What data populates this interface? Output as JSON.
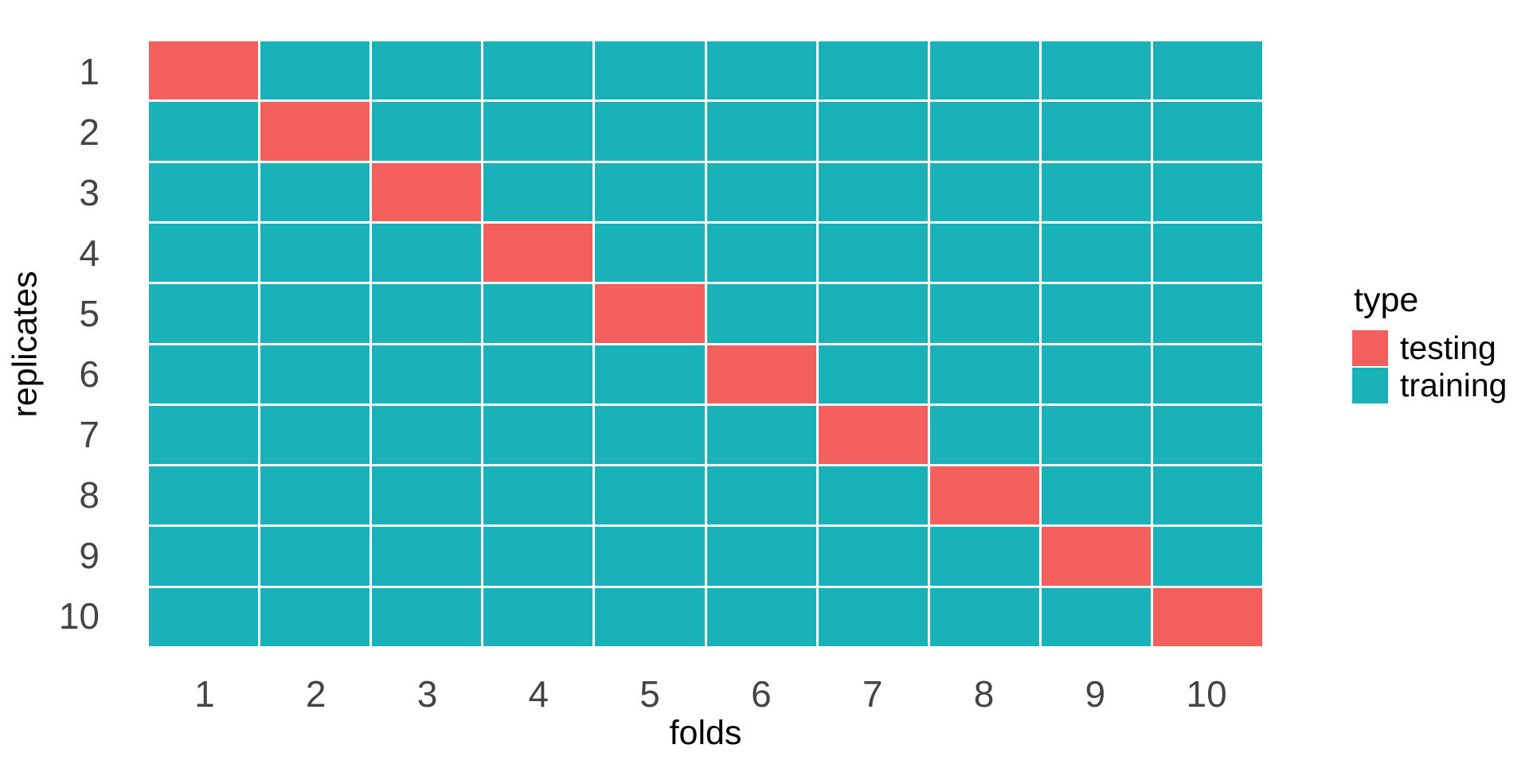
{
  "chart_data": {
    "type": "heatmap",
    "title": "",
    "xlabel": "folds",
    "ylabel": "replicates",
    "x_ticks": [
      "1",
      "2",
      "3",
      "4",
      "5",
      "6",
      "7",
      "8",
      "9",
      "10"
    ],
    "y_ticks": [
      "1",
      "2",
      "3",
      "4",
      "5",
      "6",
      "7",
      "8",
      "9",
      "10"
    ],
    "grid": "white gaps between tiles, no axis lines, no tick marks",
    "legend_position": "right",
    "matrix_rows_are_replicates_1_to_10": true,
    "matrix": [
      [
        "testing",
        "training",
        "training",
        "training",
        "training",
        "training",
        "training",
        "training",
        "training",
        "training"
      ],
      [
        "training",
        "testing",
        "training",
        "training",
        "training",
        "training",
        "training",
        "training",
        "training",
        "training"
      ],
      [
        "training",
        "training",
        "testing",
        "training",
        "training",
        "training",
        "training",
        "training",
        "training",
        "training"
      ],
      [
        "training",
        "training",
        "training",
        "testing",
        "training",
        "training",
        "training",
        "training",
        "training",
        "training"
      ],
      [
        "training",
        "training",
        "training",
        "training",
        "testing",
        "training",
        "training",
        "training",
        "training",
        "training"
      ],
      [
        "training",
        "training",
        "training",
        "training",
        "training",
        "testing",
        "training",
        "training",
        "training",
        "training"
      ],
      [
        "training",
        "training",
        "training",
        "training",
        "training",
        "training",
        "testing",
        "training",
        "training",
        "training"
      ],
      [
        "training",
        "training",
        "training",
        "training",
        "training",
        "training",
        "training",
        "testing",
        "training",
        "training"
      ],
      [
        "training",
        "training",
        "training",
        "training",
        "training",
        "training",
        "training",
        "training",
        "testing",
        "training"
      ],
      [
        "training",
        "training",
        "training",
        "training",
        "training",
        "training",
        "training",
        "training",
        "training",
        "testing"
      ]
    ]
  },
  "legend": {
    "title": "type",
    "items": [
      {
        "label": "testing",
        "color": "#F25F5C"
      },
      {
        "label": "training",
        "color": "#18B2B8"
      }
    ]
  },
  "colors": {
    "testing": "#F25F5C",
    "training": "#18B2B8",
    "tile_gap": "#FFFFFF",
    "tick_text": "#444444",
    "title_text": "#000000",
    "background": "#FFFFFF"
  }
}
